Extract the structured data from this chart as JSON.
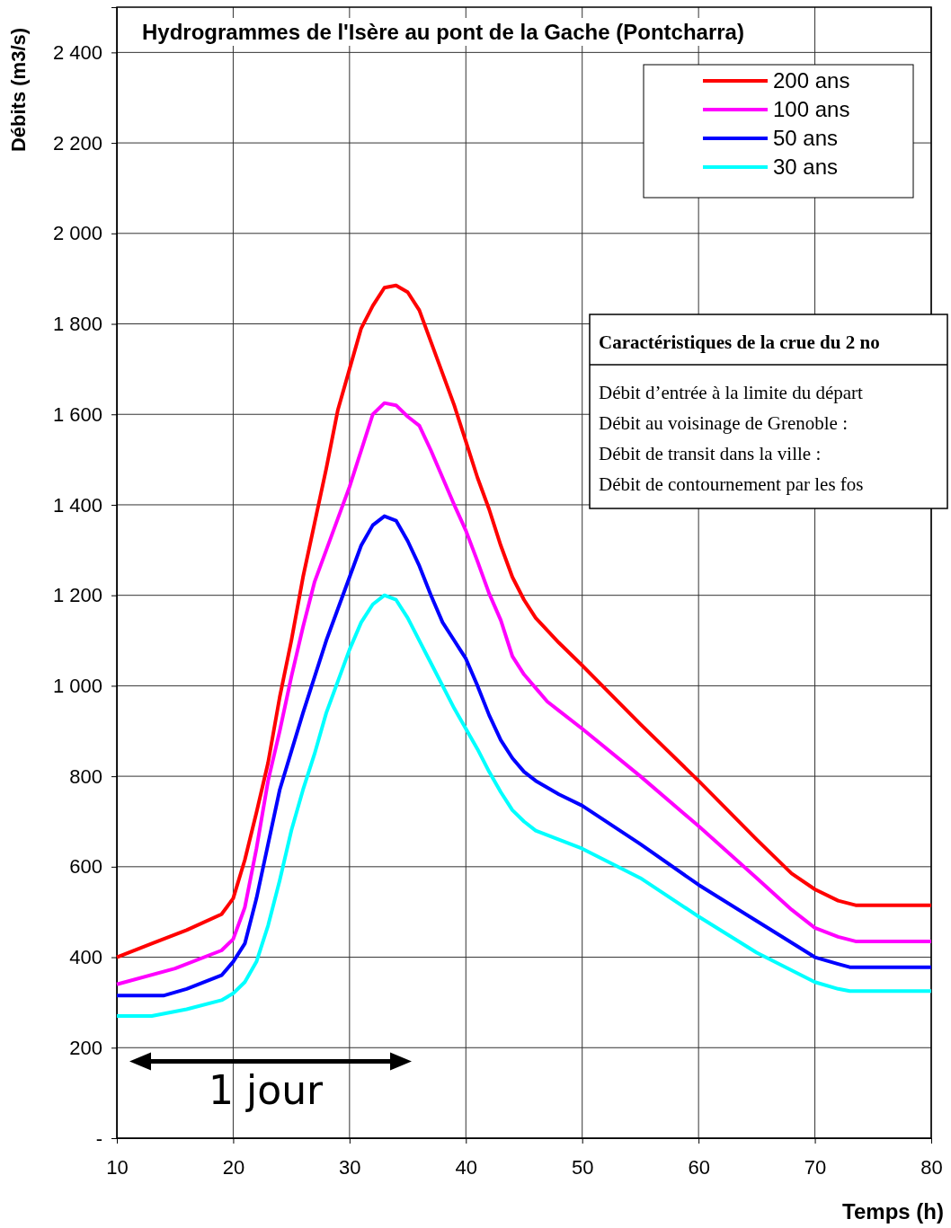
{
  "chart_data": {
    "type": "line",
    "title": "Hydrogrammes de l'Isère au pont de la Gache (Pontcharra)",
    "xlabel": "Temps (h)",
    "ylabel": "Débits (m3/s)",
    "xlim": [
      10,
      80
    ],
    "xticks": [
      10,
      20,
      30,
      40,
      50,
      60,
      70,
      80
    ],
    "ylim": [
      0,
      2500
    ],
    "yticks": [
      {
        "value": 0,
        "label": "-"
      },
      200,
      400,
      600,
      800,
      {
        "value": 1000,
        "label": "1 000"
      },
      {
        "value": 1200,
        "label": "1 200"
      },
      {
        "value": 1400,
        "label": "1 400"
      },
      {
        "value": 1600,
        "label": "1 600"
      },
      {
        "value": 1800,
        "label": "1 800"
      },
      {
        "value": 2000,
        "label": "2 000"
      },
      {
        "value": 2200,
        "label": "2 200"
      },
      {
        "value": 2400,
        "label": "2 400"
      }
    ],
    "grid": true,
    "legend": "top right",
    "marker": "none",
    "line_style": "solid",
    "annotations": [
      "1 jour",
      "Caractéristiques de la crue du 2 no",
      "Débit d’entrée à la limite du départ",
      "Débit au voisinage de Grenoble :",
      "Débit de transit dans la ville :",
      "Débit de contournement par les fos"
    ],
    "series": [
      {
        "name": "200 ans",
        "color": "#ff0000",
        "x": [
          10,
          13,
          16,
          19,
          20,
          21,
          22,
          23,
          24,
          25,
          26,
          27,
          28,
          29,
          30,
          31,
          32,
          33,
          34,
          35,
          36,
          37,
          38,
          39,
          40,
          41,
          42,
          43,
          44,
          45,
          46,
          48,
          50,
          55,
          60,
          65,
          68,
          70,
          72,
          73.5,
          80
        ],
        "values": [
          400,
          430,
          460,
          495,
          530,
          615,
          720,
          830,
          975,
          1100,
          1240,
          1360,
          1480,
          1610,
          1700,
          1790,
          1840,
          1880,
          1885,
          1870,
          1830,
          1760,
          1690,
          1620,
          1540,
          1460,
          1390,
          1310,
          1240,
          1190,
          1150,
          1095,
          1045,
          915,
          790,
          660,
          585,
          550,
          525,
          515,
          515
        ]
      },
      {
        "name": "100 ans",
        "color": "#ff00ff",
        "x": [
          10,
          15,
          19,
          20,
          21,
          22,
          23,
          24,
          25,
          26,
          27,
          28,
          29,
          30,
          31,
          32,
          33,
          34,
          35,
          36,
          37,
          38,
          39,
          40,
          41,
          42,
          43,
          44,
          45,
          46,
          47,
          48,
          50,
          55,
          60,
          65,
          68,
          70,
          72,
          73.5,
          80
        ],
        "values": [
          340,
          375,
          415,
          440,
          510,
          640,
          790,
          900,
          1020,
          1130,
          1230,
          1300,
          1370,
          1440,
          1520,
          1600,
          1625,
          1620,
          1595,
          1575,
          1520,
          1460,
          1400,
          1343,
          1275,
          1204,
          1145,
          1065,
          1025,
          995,
          965,
          945,
          905,
          800,
          690,
          575,
          505,
          465,
          445,
          435,
          435
        ]
      },
      {
        "name": "50 ans",
        "color": "#0000ff",
        "x": [
          10,
          14,
          16,
          19,
          20,
          21,
          22,
          23,
          24,
          25,
          26,
          27,
          28,
          29,
          30,
          31,
          32,
          33,
          34,
          35,
          36,
          37,
          38,
          39,
          40,
          41,
          42,
          43,
          44,
          45,
          46,
          48,
          50,
          55,
          60,
          65,
          70,
          72,
          73,
          80
        ],
        "values": [
          315,
          315,
          330,
          360,
          390,
          430,
          530,
          650,
          770,
          855,
          940,
          1020,
          1100,
          1170,
          1240,
          1310,
          1355,
          1375,
          1365,
          1320,
          1265,
          1200,
          1140,
          1100,
          1060,
          1000,
          935,
          880,
          840,
          810,
          790,
          760,
          735,
          650,
          560,
          480,
          400,
          385,
          378,
          378
        ]
      },
      {
        "name": "30 ans",
        "color": "#00ffff",
        "x": [
          10,
          13,
          16,
          19,
          20,
          21,
          22,
          23,
          24,
          25,
          26,
          27,
          28,
          29,
          30,
          31,
          32,
          33,
          34,
          35,
          36,
          37,
          38,
          39,
          40,
          41,
          42,
          43,
          44,
          45,
          46,
          48,
          50,
          55,
          60,
          65,
          70,
          72,
          73,
          80
        ],
        "values": [
          270,
          270,
          285,
          305,
          320,
          345,
          390,
          470,
          570,
          680,
          770,
          850,
          940,
          1010,
          1080,
          1140,
          1180,
          1200,
          1190,
          1150,
          1100,
          1050,
          1000,
          950,
          905,
          860,
          810,
          765,
          725,
          700,
          680,
          660,
          640,
          575,
          490,
          410,
          345,
          330,
          325,
          325
        ]
      }
    ]
  }
}
